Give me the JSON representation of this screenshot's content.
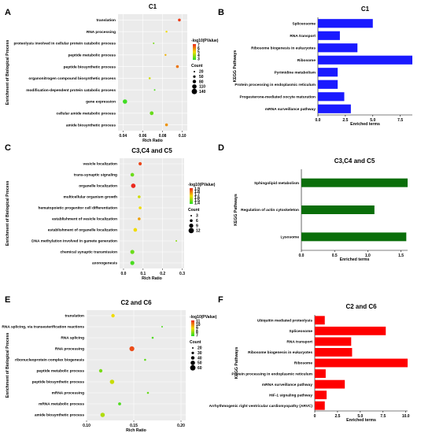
{
  "chart_data": [
    {
      "panel": "A",
      "type": "scatter",
      "title": "C1",
      "xlabel": "Rich Ratio",
      "ylabel": "Enrichment of Biological Process",
      "xlim": [
        0.035,
        0.105
      ],
      "xticks": [
        "0.04",
        "0.06",
        "0.08",
        "0.10"
      ],
      "color_legend_title": "-log10(PValue)",
      "color_ticks": [
        "7",
        "6",
        "5",
        "4",
        "3"
      ],
      "color_range": [
        2.5,
        7.5
      ],
      "size_legend_title": "Count",
      "size_legend": [
        "20",
        "50",
        "80",
        "110",
        "140"
      ],
      "categories": [
        "translation",
        "RNA processing",
        "proteolysis involved in cellular protein catabolic process",
        "peptide metabolic process",
        "peptide biosynthetic process",
        "organonitrogen compound biosynthetic process",
        "modification-dependent protein catabolic process",
        "gene expression",
        "cellular amide metabolic process",
        "amide biosynthetic process"
      ],
      "points": [
        {
          "x": 0.097,
          "p": 7.2,
          "count": 60
        },
        {
          "x": 0.084,
          "p": 5.0,
          "count": 30
        },
        {
          "x": 0.071,
          "p": 3.5,
          "count": 20
        },
        {
          "x": 0.083,
          "p": 5.6,
          "count": 30
        },
        {
          "x": 0.095,
          "p": 6.4,
          "count": 60
        },
        {
          "x": 0.067,
          "p": 4.6,
          "count": 35
        },
        {
          "x": 0.072,
          "p": 3.0,
          "count": 20
        },
        {
          "x": 0.042,
          "p": 2.8,
          "count": 110
        },
        {
          "x": 0.069,
          "p": 3.3,
          "count": 90
        },
        {
          "x": 0.084,
          "p": 6.0,
          "count": 60
        }
      ]
    },
    {
      "panel": "B",
      "type": "bar",
      "orientation": "horizontal",
      "title": "C1",
      "color": "#1a1aff",
      "xlabel": "Enriched terms",
      "ylabel": "KEGG Pathways",
      "xlim": [
        0,
        8.6
      ],
      "xticks": [
        "0.0",
        "2.5",
        "5.0",
        "7.5"
      ],
      "categories": [
        "Spliceosome",
        "RNA transport",
        "Ribosome biogenesis in eukaryotes",
        "Ribosome",
        "Pyrimidine metabolism",
        "Protein processing in endoplasmic reticulum",
        "Progesterone-mediated oocyte maturation",
        "mRNA surveillance pathway"
      ],
      "values": [
        5.0,
        2.0,
        3.6,
        8.6,
        1.8,
        1.8,
        2.4,
        3.0
      ]
    },
    {
      "panel": "C",
      "type": "scatter",
      "title": "C3,C4 and C5",
      "xlabel": "Rich Ratio",
      "ylabel": "Enrichment of Biological Process",
      "xlim": [
        -0.02,
        0.31
      ],
      "xticks": [
        "0.0",
        "0.1",
        "0.2",
        "0.3"
      ],
      "color_legend_title": "-log10(PValue)",
      "color_ticks": [
        "1.9",
        "1.8",
        "1.7",
        "1.6",
        "1.5",
        "1.4"
      ],
      "color_range": [
        1.35,
        1.95
      ],
      "size_legend_title": "Count",
      "size_legend": [
        "3",
        "6",
        "9",
        "12"
      ],
      "categories": [
        "vesicle localization",
        "trans-synaptic signaling",
        "organelle localization",
        "multicellular organism growth",
        "hematopoietic progenitor cell differentiation",
        "establishment of vesicle localization",
        "establishment of organelle localization",
        "DNA methylation involved in gamete generation",
        "chemical synaptic transmission",
        "axonogenesis"
      ],
      "points": [
        {
          "x": 0.085,
          "p": 1.9,
          "count": 7
        },
        {
          "x": 0.045,
          "p": 1.45,
          "count": 8
        },
        {
          "x": 0.05,
          "p": 1.95,
          "count": 10
        },
        {
          "x": 0.08,
          "p": 1.6,
          "count": 6
        },
        {
          "x": 0.085,
          "p": 1.65,
          "count": 6
        },
        {
          "x": 0.08,
          "p": 1.75,
          "count": 6
        },
        {
          "x": 0.06,
          "p": 1.65,
          "count": 8
        },
        {
          "x": 0.27,
          "p": 1.5,
          "count": 3
        },
        {
          "x": 0.045,
          "p": 1.45,
          "count": 9
        },
        {
          "x": 0.045,
          "p": 1.4,
          "count": 9
        }
      ]
    },
    {
      "panel": "D",
      "type": "bar",
      "orientation": "horizontal",
      "title": "C3,C4 and C5",
      "color": "#0a6e0a",
      "xlabel": "Enriched terms",
      "ylabel": "KEGG Pathways",
      "xlim": [
        0,
        1.6
      ],
      "xticks": [
        "0.0",
        "0.5",
        "1.0",
        "1.5"
      ],
      "categories": [
        "Sphingolipid metabolism",
        "Regulation of actin cytoskeleton",
        "Lysosome"
      ],
      "values": [
        1.6,
        1.1,
        1.58
      ]
    },
    {
      "panel": "E",
      "type": "scatter",
      "title": "C2 and C6",
      "xlabel": "Rich Ratio",
      "ylabel": "Enrichment of Biological Process",
      "xlim": [
        0.1,
        0.205
      ],
      "xticks": [
        "0.10",
        "0.15",
        "0.20"
      ],
      "color_legend_title": "-log10(PValue)",
      "color_ticks": [
        "11",
        "10",
        "9",
        "8",
        "7"
      ],
      "color_range": [
        6.5,
        11.5
      ],
      "size_legend_title": "Count",
      "size_legend": [
        "20",
        "30",
        "40",
        "50",
        "60"
      ],
      "categories": [
        "translation",
        "RNA splicing, via transesterification reactions",
        "RNA splicing",
        "RNA processing",
        "ribonucleoprotein complex biogenesis",
        "peptide metabolic process",
        "peptide biosynthetic process",
        "mRNA processing",
        "mRNA metabolic process",
        "amide biosynthetic process"
      ],
      "points": [
        {
          "x": 0.128,
          "p": 9.0,
          "count": 40
        },
        {
          "x": 0.18,
          "p": 7.0,
          "count": 20
        },
        {
          "x": 0.17,
          "p": 7.0,
          "count": 25
        },
        {
          "x": 0.148,
          "p": 11.0,
          "count": 55
        },
        {
          "x": 0.162,
          "p": 7.2,
          "count": 25
        },
        {
          "x": 0.115,
          "p": 7.5,
          "count": 40
        },
        {
          "x": 0.127,
          "p": 8.5,
          "count": 50
        },
        {
          "x": 0.165,
          "p": 7.3,
          "count": 25
        },
        {
          "x": 0.135,
          "p": 7.0,
          "count": 35
        },
        {
          "x": 0.117,
          "p": 8.2,
          "count": 50
        }
      ]
    },
    {
      "panel": "F",
      "type": "bar",
      "orientation": "horizontal",
      "title": "C2 and C6",
      "color": "#ff0000",
      "xlabel": "Enriched terms",
      "ylabel": "KEGG Pathways",
      "xlim": [
        0,
        10.2
      ],
      "xticks": [
        "0",
        "2.5",
        "5.0",
        "7.5",
        "10.0"
      ],
      "categories": [
        "Ubiquitin mediated proteolysis",
        "Spliceosome",
        "RNA transport",
        "Ribosome biogenesis in eukaryotes",
        "Ribosome",
        "Protein processing in endoplasmic reticulum",
        "mRNA surveillance pathway",
        "HIF-1 signaling pathway",
        "Arrhythmogenic right ventricular cardiomyopathy (ARVC)"
      ],
      "values": [
        1.1,
        7.8,
        4.0,
        4.1,
        10.2,
        1.2,
        3.3,
        1.3,
        1.1
      ]
    }
  ]
}
